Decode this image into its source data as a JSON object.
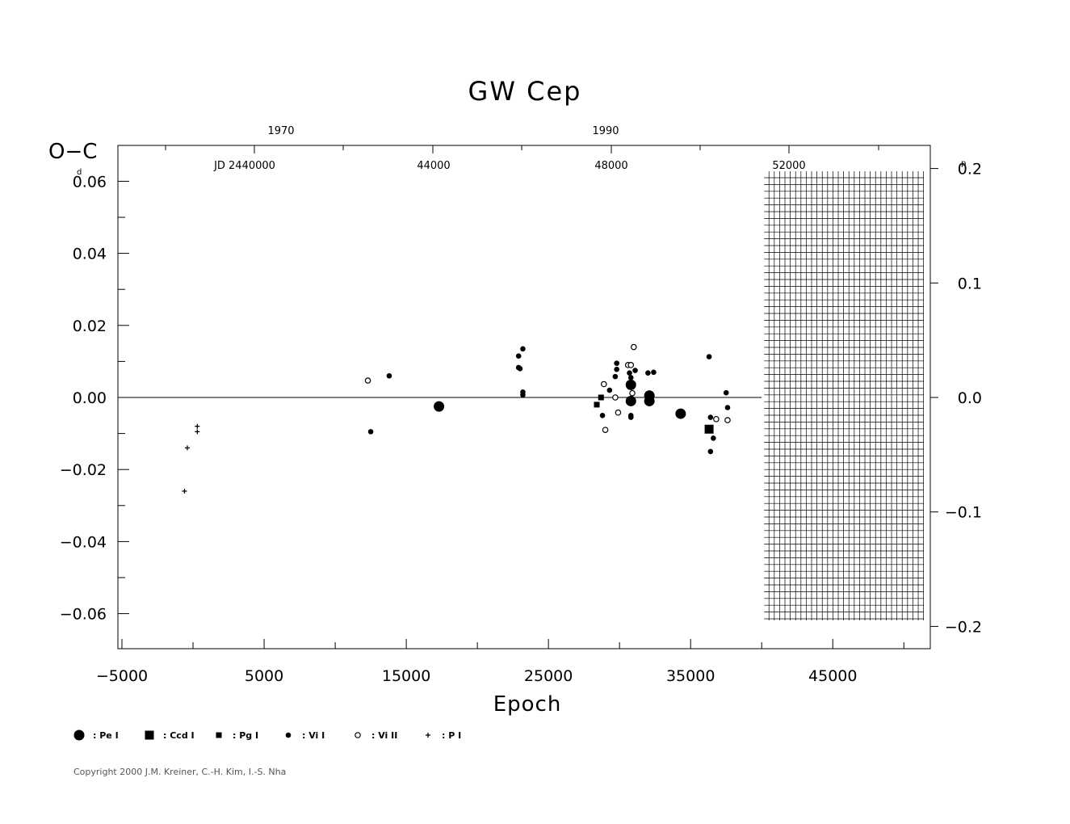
{
  "chart_data": {
    "type": "scatter",
    "title": "GW  Cep",
    "xlabel": "Epoch",
    "ylabel": "O−C",
    "y_unit_left": "d",
    "y_unit_right": "p",
    "xlim": [
      -5000,
      52000
    ],
    "ylim": [
      -0.07,
      0.07
    ],
    "x_ticks": [
      "−5000",
      "5000",
      "15000",
      "25000",
      "35000",
      "45000"
    ],
    "y_ticks_left": [
      "0.06",
      "0.04",
      "0.02",
      "0.00",
      "−0.02",
      "−0.04",
      "−0.06"
    ],
    "y_ticks_right": [
      "0.2",
      "0.1",
      "0.0",
      "−0.1",
      "−0.2"
    ],
    "top_year_labels": [
      "1970",
      "1990"
    ],
    "top_jd_labels": [
      "JD  2440000",
      "44000",
      "48000",
      "52000"
    ],
    "future_hatch_from_epoch": 40000,
    "series": [
      {
        "name": "Pe I",
        "symbol": "big-dot",
        "points": [
          [
            17300,
            -0.0025
          ],
          [
            30800,
            0.0035
          ],
          [
            30800,
            -0.001
          ],
          [
            32100,
            0.0005
          ],
          [
            32100,
            -0.001
          ],
          [
            34300,
            -0.0045
          ]
        ]
      },
      {
        "name": "Ccd I",
        "symbol": "big-square",
        "points": [
          [
            36300,
            -0.0088
          ]
        ]
      },
      {
        "name": "Pg I",
        "symbol": "small-square",
        "points": [
          [
            28400,
            -0.002
          ],
          [
            28700,
            0.0
          ]
        ]
      },
      {
        "name": "Vi I",
        "symbol": "dot",
        "points": [
          [
            12500,
            -0.0095
          ],
          [
            13800,
            0.006
          ],
          [
            22900,
            0.0115
          ],
          [
            22900,
            0.0083
          ],
          [
            23000,
            0.008
          ],
          [
            23200,
            0.0135
          ],
          [
            23200,
            0.0015
          ],
          [
            23200,
            0.0007
          ],
          [
            28800,
            -0.005
          ],
          [
            29300,
            0.002
          ],
          [
            29800,
            0.0095
          ],
          [
            29800,
            0.0078
          ],
          [
            29700,
            0.0058
          ],
          [
            30700,
            0.0068
          ],
          [
            30800,
            0.0055
          ],
          [
            30800,
            -0.005
          ],
          [
            30800,
            -0.0055
          ],
          [
            31100,
            0.0075
          ],
          [
            32000,
            0.0068
          ],
          [
            32400,
            0.007
          ],
          [
            36300,
            0.0113
          ],
          [
            36400,
            -0.0055
          ],
          [
            36400,
            -0.015
          ],
          [
            36600,
            -0.0113
          ],
          [
            37500,
            0.0013
          ],
          [
            37600,
            -0.0028
          ]
        ]
      },
      {
        "name": "Vi II",
        "symbol": "open-circle",
        "points": [
          [
            12300,
            0.0047
          ],
          [
            28900,
            0.0037
          ],
          [
            29000,
            -0.009
          ],
          [
            29700,
            0.0
          ],
          [
            29900,
            -0.0042
          ],
          [
            30600,
            0.009
          ],
          [
            30800,
            0.009
          ],
          [
            31000,
            0.014
          ],
          [
            30900,
            0.0012
          ],
          [
            36800,
            -0.006
          ],
          [
            37600,
            -0.0063
          ]
        ]
      },
      {
        "name": "P I",
        "symbol": "plus",
        "points": [
          [
            -600,
            -0.026
          ],
          [
            -400,
            -0.014
          ],
          [
            300,
            -0.008
          ],
          [
            300,
            -0.0095
          ]
        ]
      }
    ]
  },
  "legend": [
    {
      "symbol": "big-dot",
      "label": ": Pe  I"
    },
    {
      "symbol": "big-square",
      "label": ": Ccd  I"
    },
    {
      "symbol": "small-square",
      "label": ": Pg  I"
    },
    {
      "symbol": "dot",
      "label": ": Vi  I"
    },
    {
      "symbol": "open-circle",
      "label": ": Vi  II"
    },
    {
      "symbol": "plus",
      "label": ": P  I"
    }
  ],
  "copyright": "Copyright 2000 J.M. Kreiner, C.-H. Kim, I.-S. Nha"
}
